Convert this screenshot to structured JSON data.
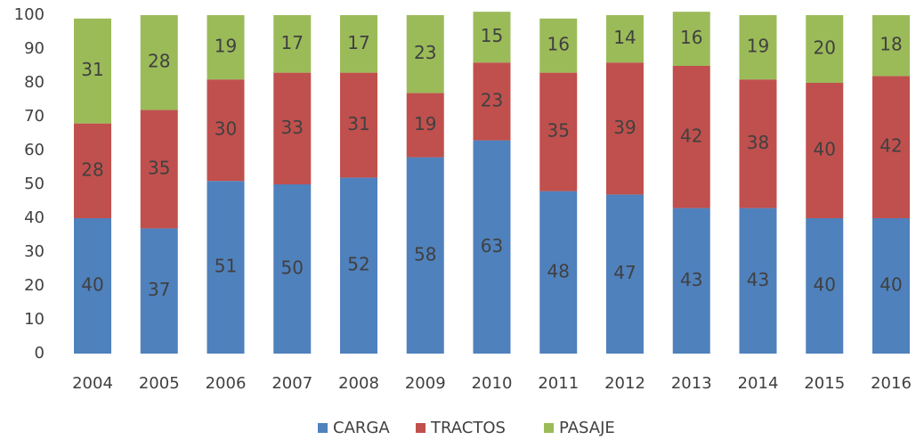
{
  "chart_data": {
    "type": "stacked_bar",
    "categories": [
      "2004",
      "2005",
      "2006",
      "2007",
      "2008",
      "2009",
      "2010",
      "2011",
      "2012",
      "2013",
      "2014",
      "2015",
      "2016"
    ],
    "series": [
      {
        "name": "CARGA",
        "color": "#4f81bd",
        "values": [
          40,
          37,
          51,
          50,
          52,
          58,
          63,
          48,
          47,
          43,
          43,
          40,
          40
        ]
      },
      {
        "name": "TRACTOS",
        "color": "#c0504d",
        "values": [
          28,
          35,
          30,
          33,
          31,
          19,
          23,
          35,
          39,
          42,
          38,
          40,
          42
        ]
      },
      {
        "name": "PASAJE",
        "color": "#9bbb59",
        "values": [
          31,
          28,
          19,
          17,
          17,
          23,
          15,
          16,
          14,
          16,
          19,
          20,
          18
        ]
      }
    ],
    "ylim": [
      0,
      100
    ],
    "yticks": [
      0,
      10,
      20,
      30,
      40,
      50,
      60,
      70,
      80,
      90,
      100
    ],
    "grid": false,
    "legend": "bottom"
  }
}
